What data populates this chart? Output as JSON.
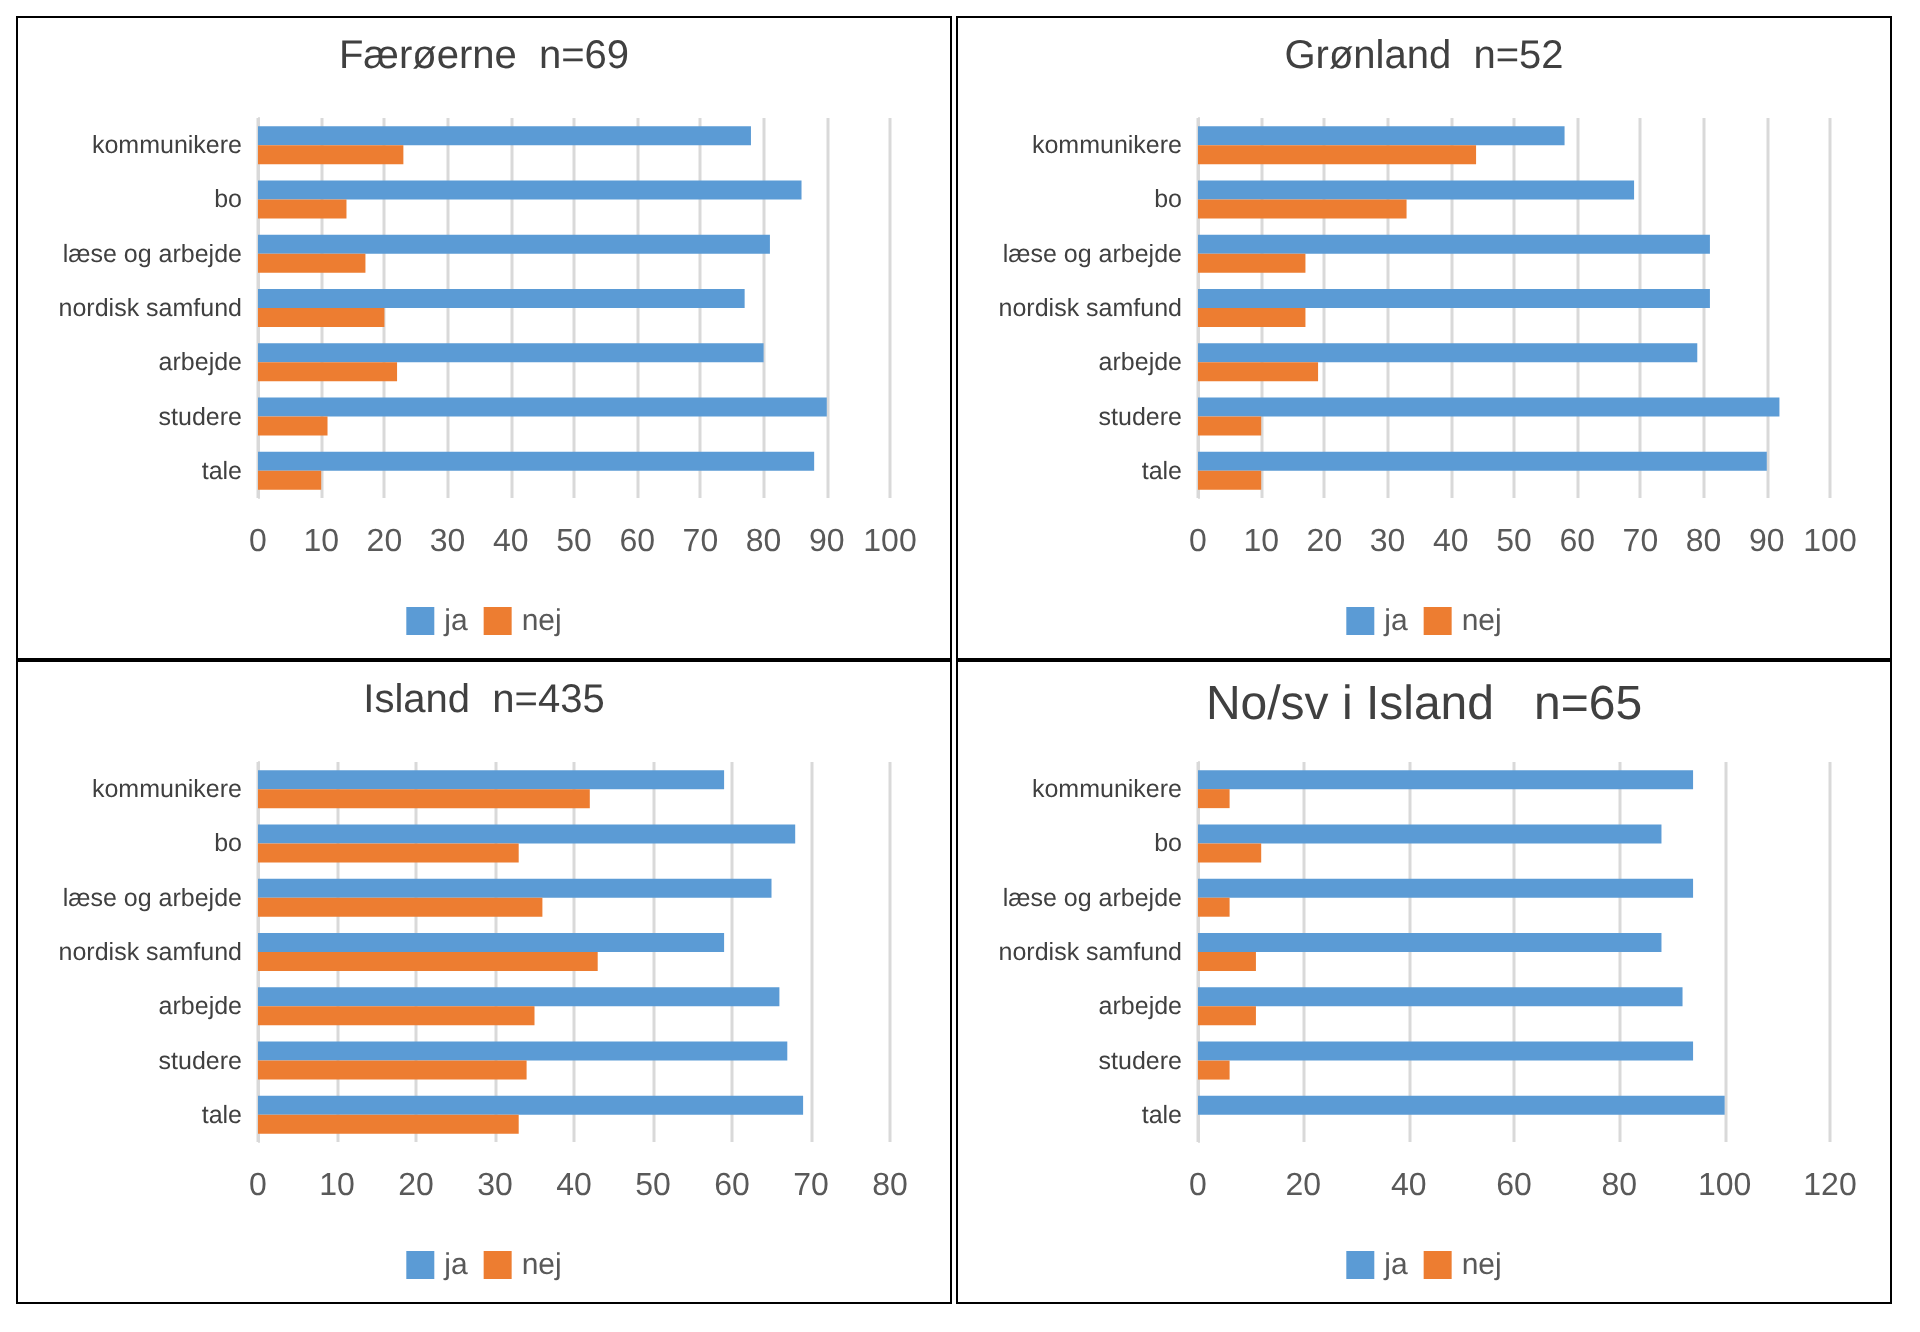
{
  "chart_data": [
    {
      "type": "bar",
      "orientation": "horizontal",
      "title": "Færøerne  n=69",
      "categories": [
        "kommunikere",
        "bo",
        "læse og arbejde",
        "nordisk samfund",
        "arbejde",
        "studere",
        "tale"
      ],
      "series": [
        {
          "name": "ja",
          "color": "#5b9bd5",
          "values": [
            78,
            86,
            81,
            77,
            80,
            90,
            88
          ]
        },
        {
          "name": "nej",
          "color": "#ed7d31",
          "values": [
            23,
            14,
            17,
            20,
            22,
            11,
            10
          ]
        }
      ],
      "xlim": [
        0,
        100
      ],
      "xticks": [
        0,
        10,
        20,
        30,
        40,
        50,
        60,
        70,
        80,
        90,
        100
      ],
      "grid": "x",
      "legend": "bottom"
    },
    {
      "type": "bar",
      "orientation": "horizontal",
      "title": "Grønland  n=52",
      "categories": [
        "kommunikere",
        "bo",
        "læse og arbejde",
        "nordisk samfund",
        "arbejde",
        "studere",
        "tale"
      ],
      "series": [
        {
          "name": "ja",
          "color": "#5b9bd5",
          "values": [
            58,
            69,
            81,
            81,
            79,
            92,
            90
          ]
        },
        {
          "name": "nej",
          "color": "#ed7d31",
          "values": [
            44,
            33,
            17,
            17,
            19,
            10,
            10
          ]
        }
      ],
      "xlim": [
        0,
        100
      ],
      "xticks": [
        0,
        10,
        20,
        30,
        40,
        50,
        60,
        70,
        80,
        90,
        100
      ],
      "grid": "x",
      "legend": "bottom"
    },
    {
      "type": "bar",
      "orientation": "horizontal",
      "title": "Island  n=435",
      "categories": [
        "kommunikere",
        "bo",
        "læse og arbejde",
        "nordisk samfund",
        "arbejde",
        "studere",
        "tale"
      ],
      "series": [
        {
          "name": "ja",
          "color": "#5b9bd5",
          "values": [
            59,
            68,
            65,
            59,
            66,
            67,
            69
          ]
        },
        {
          "name": "nej",
          "color": "#ed7d31",
          "values": [
            42,
            33,
            36,
            43,
            35,
            34,
            33
          ]
        }
      ],
      "xlim": [
        0,
        80
      ],
      "xticks": [
        0,
        10,
        20,
        30,
        40,
        50,
        60,
        70,
        80
      ],
      "grid": "x",
      "legend": "bottom"
    },
    {
      "type": "bar",
      "orientation": "horizontal",
      "title": "No/sv i Island   n=65",
      "categories": [
        "kommunikere",
        "bo",
        "læse og arbejde",
        "nordisk samfund",
        "arbejde",
        "studere",
        "tale"
      ],
      "series": [
        {
          "name": "ja",
          "color": "#5b9bd5",
          "values": [
            94,
            88,
            94,
            88,
            92,
            94,
            100
          ]
        },
        {
          "name": "nej",
          "color": "#ed7d31",
          "values": [
            6,
            12,
            6,
            11,
            11,
            6,
            0
          ]
        }
      ],
      "xlim": [
        0,
        120
      ],
      "xticks": [
        0,
        20,
        40,
        60,
        80,
        100,
        120
      ],
      "grid": "x",
      "legend": "bottom"
    }
  ]
}
